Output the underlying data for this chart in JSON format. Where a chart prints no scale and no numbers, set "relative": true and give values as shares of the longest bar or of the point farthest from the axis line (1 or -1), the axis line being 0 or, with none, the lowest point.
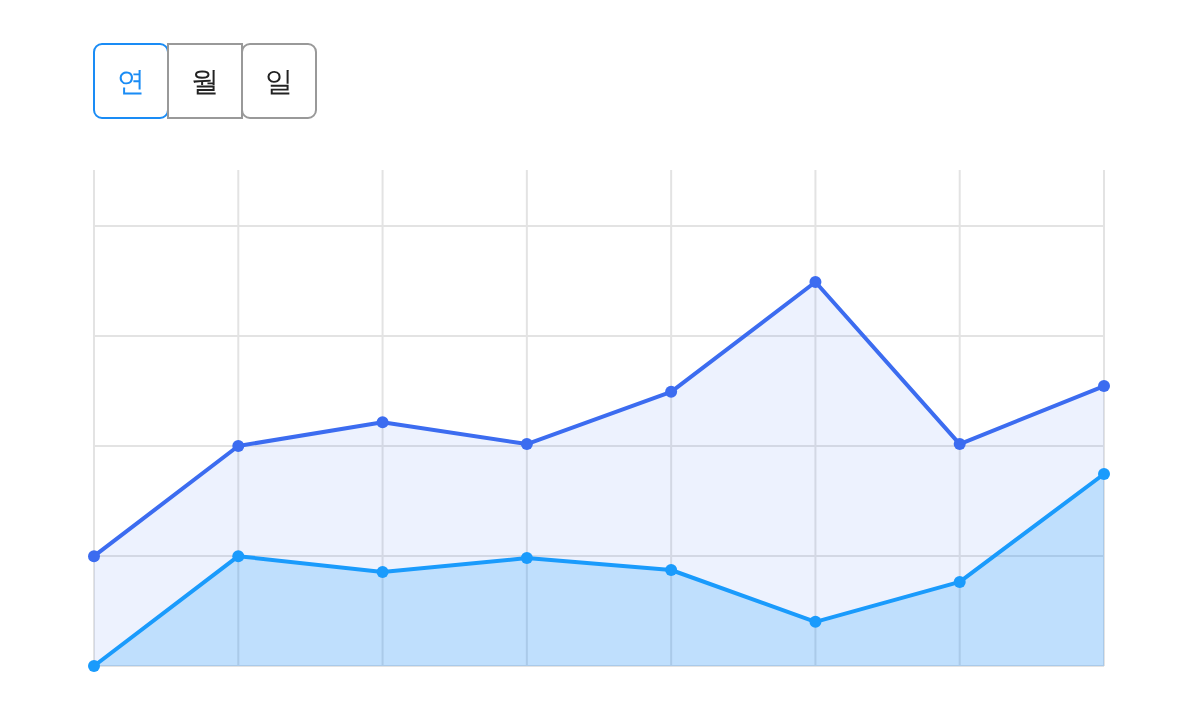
{
  "chart_data": {
    "type": "area",
    "relative": true,
    "grid": true,
    "marker": "circle",
    "annotations": [
      "연",
      "월",
      "일"
    ],
    "categories": [
      null,
      null,
      null,
      null,
      null,
      null,
      null,
      null
    ],
    "series": [
      {
        "color": "#3c6cf0",
        "values": [
          0.286,
          0.573,
          0.635,
          0.578,
          0.714,
          1,
          0.578,
          0.729
        ]
      },
      {
        "color": "#1a9bfc",
        "values": [
          0,
          0.286,
          0.245,
          0.281,
          0.25,
          0.115,
          0.219,
          0.5
        ]
      }
    ]
  }
}
